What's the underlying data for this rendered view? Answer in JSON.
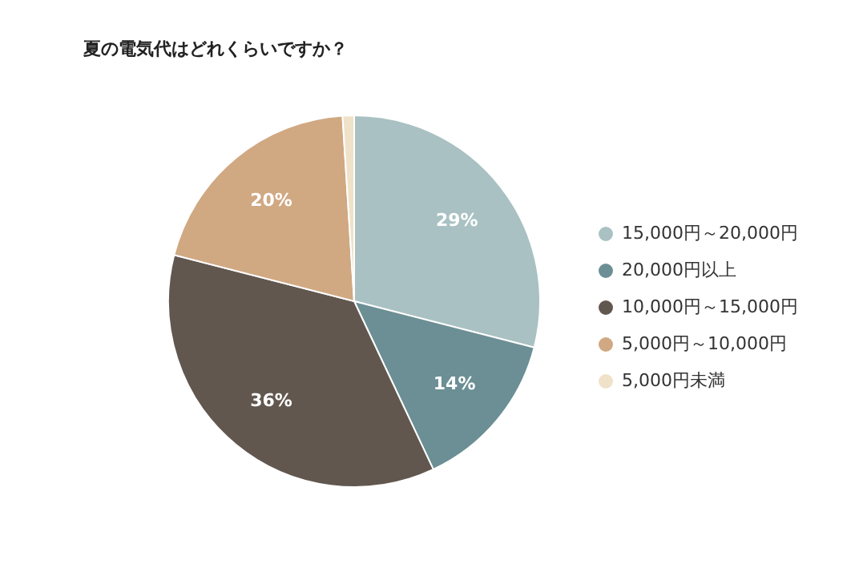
{
  "chart_data": {
    "type": "pie",
    "title": "夏の電気代はどれくらいですか？",
    "categories": [
      "15,000円～20,000円",
      "20,000円以上",
      "10,000円～15,000円",
      "5,000円～10,000円",
      "5,000円未満"
    ],
    "values": [
      29,
      14,
      36,
      20,
      1
    ],
    "colors": [
      "#a9c1c3",
      "#6b8f94",
      "#62574f",
      "#d0a882",
      "#efe2c8"
    ],
    "value_labels": [
      "29%",
      "14%",
      "36%",
      "20%",
      null
    ],
    "legend": "right"
  }
}
